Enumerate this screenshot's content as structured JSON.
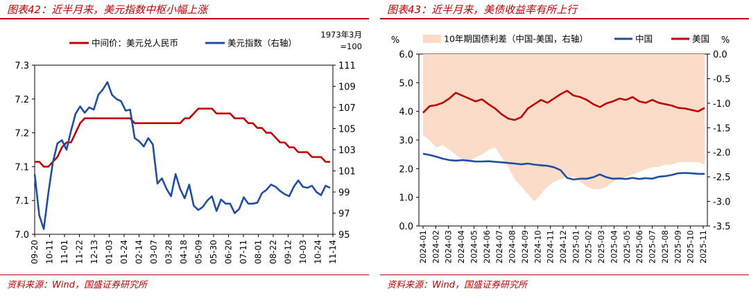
{
  "charts": [
    {
      "title": "图表42：近半月来，美元指数中枢小幅上涨",
      "source": "资料来源：Wind，国盛证券研究所",
      "chart_data": {
        "type": "line",
        "left_axis": {
          "ticks": [
            "7.0",
            "7.1",
            "7.1",
            "7.2",
            "7.2",
            "7.3"
          ],
          "ylim": [
            6.95,
            7.3
          ]
        },
        "right_axis": {
          "ticks": [
            "95",
            "97",
            "99",
            "101",
            "103",
            "105",
            "107",
            "109",
            "111"
          ],
          "ylim": [
            95,
            111
          ],
          "unit_note": "1973年3月=100"
        },
        "x_ticks": [
          "09-20",
          "10-11",
          "11-01",
          "11-22",
          "12-13",
          "01-03",
          "01-24",
          "02-14",
          "03-07",
          "03-28",
          "04-18",
          "05-09",
          "05-30",
          "06-20",
          "07-11",
          "08-01",
          "08-22",
          "09-12",
          "10-03",
          "10-24",
          "11-14"
        ],
        "series": [
          {
            "name": "中间价：美元兑人民币",
            "axis": "left",
            "color": "#c00000",
            "values": [
              7.1,
              7.1,
              7.09,
              7.09,
              7.1,
              7.11,
              7.13,
              7.14,
              7.14,
              7.16,
              7.18,
              7.19,
              7.19,
              7.19,
              7.19,
              7.19,
              7.19,
              7.19,
              7.19,
              7.19,
              7.19,
              7.19,
              7.18,
              7.18,
              7.18,
              7.18,
              7.18,
              7.18,
              7.18,
              7.18,
              7.18,
              7.18,
              7.18,
              7.19,
              7.19,
              7.2,
              7.21,
              7.21,
              7.21,
              7.21,
              7.2,
              7.2,
              7.2,
              7.2,
              7.19,
              7.19,
              7.19,
              7.18,
              7.18,
              7.17,
              7.17,
              7.16,
              7.16,
              7.15,
              7.14,
              7.14,
              7.13,
              7.13,
              7.12,
              7.12,
              7.12,
              7.11,
              7.11,
              7.11,
              7.1,
              7.1
            ]
          },
          {
            "name": "美元指数（右轴）",
            "axis": "right",
            "color": "#1f4ea0",
            "values": [
              100.7,
              96.8,
              95.5,
              98.9,
              101.8,
              103.6,
              103.9,
              103.0,
              104.8,
              106.4,
              107.1,
              106.5,
              107.0,
              106.8,
              108.2,
              108.7,
              109.4,
              108.2,
              107.8,
              107.6,
              106.7,
              106.8,
              104.1,
              103.8,
              103.3,
              104.1,
              103.5,
              99.8,
              100.3,
              99.3,
              98.6,
              100.7,
              99.3,
              98.4,
              99.7,
              97.7,
              97.3,
              97.6,
              98.2,
              98.6,
              97.2,
              98.3,
              97.9,
              97.9,
              97.0,
              97.4,
              98.5,
              97.9,
              97.9,
              98.0,
              98.9,
              99.2,
              99.7,
              99.5,
              99.1,
              98.8,
              98.6,
              99.5,
              100.1,
              99.5,
              99.4,
              99.6,
              99.0,
              98.7,
              99.6,
              99.4
            ]
          }
        ],
        "xlabel": "",
        "ylabel": ""
      }
    },
    {
      "title": "图表43：近半月来，美债收益率有所上行",
      "source": "资料来源：Wind，国盛证券研究所",
      "chart_data": {
        "type": "line",
        "left_axis": {
          "unit": "%",
          "ticks": [
            "0.0",
            "1.0",
            "2.0",
            "3.0",
            "4.0",
            "5.0",
            "6.0"
          ],
          "ylim": [
            0,
            6
          ]
        },
        "right_axis": {
          "unit": "%",
          "ticks": [
            "-3.5",
            "-3.0",
            "-2.5",
            "-2.0",
            "-1.5",
            "-1.0",
            "-0.5",
            "0.0"
          ],
          "ylim": [
            -3.5,
            0
          ]
        },
        "x_ticks": [
          "2024-01",
          "2024-02",
          "2024-03",
          "2024-04",
          "2024-05",
          "2024-06",
          "2024-07",
          "2024-08",
          "2024-09",
          "2024-10",
          "2024-11",
          "2024-12",
          "2025-01",
          "2025-02",
          "2025-03",
          "2025-04",
          "2025-05",
          "2025-06",
          "2025-07",
          "2025-08",
          "2025-09",
          "2025-10",
          "2025-11"
        ],
        "series": [
          {
            "name": "10年期国债利差（中国-美国，右轴）",
            "axis": "right",
            "type": "area",
            "color": "#fbdcc8",
            "values": [
              -1.65,
              -1.75,
              -1.9,
              -1.85,
              -1.95,
              -2.05,
              -2.15,
              -2.2,
              -2.1,
              -2.05,
              -1.95,
              -1.9,
              -2.1,
              -2.3,
              -2.55,
              -2.7,
              -2.85,
              -3.0,
              -2.85,
              -2.7,
              -2.6,
              -2.55,
              -2.5,
              -2.5,
              -2.6,
              -2.7,
              -2.75,
              -2.75,
              -2.7,
              -2.6,
              -2.55,
              -2.5,
              -2.45,
              -2.4,
              -2.35,
              -2.3,
              -2.3,
              -2.25,
              -2.25,
              -2.2,
              -2.2,
              -2.2,
              -2.2,
              -2.25
            ]
          },
          {
            "name": "中国",
            "axis": "left",
            "color": "#1f4ea0",
            "values": [
              2.52,
              2.48,
              2.42,
              2.35,
              2.3,
              2.28,
              2.3,
              2.28,
              2.25,
              2.25,
              2.26,
              2.24,
              2.22,
              2.2,
              2.18,
              2.15,
              2.18,
              2.14,
              2.12,
              2.1,
              2.05,
              1.95,
              1.68,
              1.62,
              1.65,
              1.65,
              1.7,
              1.8,
              1.7,
              1.65,
              1.66,
              1.64,
              1.68,
              1.64,
              1.67,
              1.65,
              1.72,
              1.74,
              1.78,
              1.84,
              1.85,
              1.84,
              1.82,
              1.82
            ]
          },
          {
            "name": "美国",
            "axis": "left",
            "color": "#c00000",
            "values": [
              3.95,
              4.18,
              4.22,
              4.3,
              4.45,
              4.65,
              4.55,
              4.45,
              4.35,
              4.42,
              4.25,
              4.1,
              3.9,
              3.75,
              3.7,
              3.8,
              4.1,
              4.25,
              4.4,
              4.3,
              4.45,
              4.6,
              4.72,
              4.55,
              4.5,
              4.4,
              4.25,
              4.15,
              4.28,
              4.35,
              4.45,
              4.4,
              4.5,
              4.35,
              4.3,
              4.4,
              4.3,
              4.25,
              4.2,
              4.12,
              4.1,
              4.05,
              4.0,
              4.12
            ]
          }
        ],
        "xlabel": "",
        "ylabel": ""
      }
    }
  ]
}
